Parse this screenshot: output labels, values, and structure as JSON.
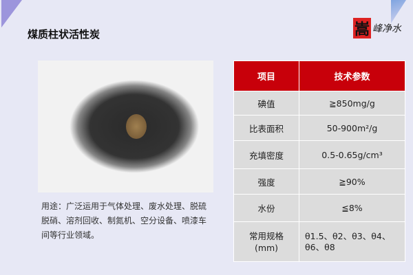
{
  "title": "煤质柱状活性炭",
  "logo": {
    "seal": "嵩",
    "text": "峰净水"
  },
  "description": "用途：广泛运用于气体处理、废水处理、脱硫脱硝、溶剂回收、制氮机、空分设备、喷漆车间等行业领域。",
  "table": {
    "headers": [
      "项目",
      "技术参数"
    ],
    "rows": [
      {
        "item": "碘值",
        "value": "≧850mg/g"
      },
      {
        "item": "比表面积",
        "value": "50-900m²/g"
      },
      {
        "item": "充填密度",
        "value": "0.5-0.65g/cm³"
      },
      {
        "item": "强度",
        "value": "≧90%"
      },
      {
        "item": "水份",
        "value": "≦8%"
      },
      {
        "item": "常用规格\n(mm)",
        "value": "θ1.5、θ2、θ3、θ4、θ6、θ8"
      }
    ]
  },
  "colors": {
    "header": "#c8000a",
    "background": "#e7e8f5",
    "cell": "#dcdcdc"
  }
}
